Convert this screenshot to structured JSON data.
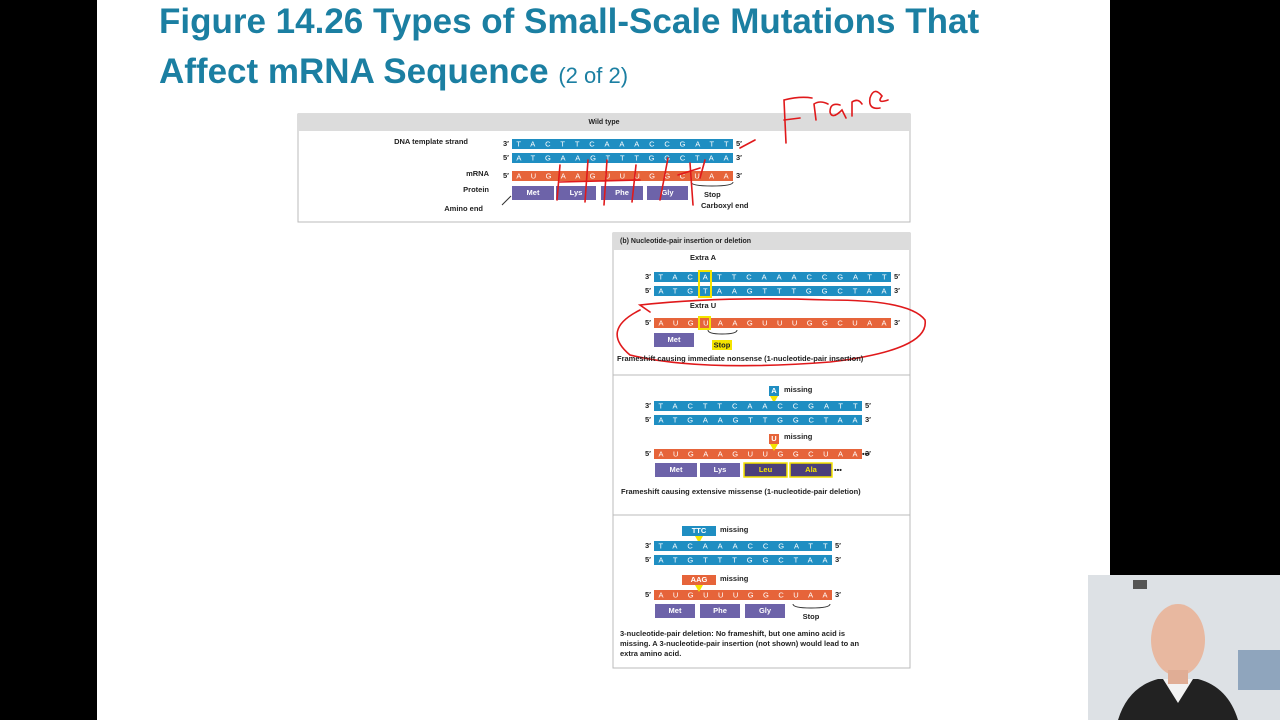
{
  "header": {
    "title_line1": "Figure 14.26 Types of Small-Scale Mutations That",
    "title_line2": "Affect mRNA Sequence",
    "title_suffix": "(2 of 2)"
  },
  "wild_type": {
    "heading": "Wild type",
    "labels": {
      "dna": "DNA template strand",
      "mrna": "mRNA",
      "protein": "Protein",
      "amino_end": "Amino end",
      "carboxyl_end": "Carboxyl end",
      "stop": "Stop"
    },
    "strands": [
      {
        "left": "3′",
        "seq": "TACTTCAAACCGATT",
        "right": "5′"
      },
      {
        "left": "5′",
        "seq": "ATGAAGTTTGGCTAA",
        "right": "3′"
      },
      {
        "left": "5′",
        "seq": "AUGAAGUUUGGCUAA",
        "right": "3′"
      }
    ],
    "protein": [
      "Met",
      "Lys",
      "Phe",
      "Gly"
    ]
  },
  "panel_b": {
    "heading": "(b) Nucleotide-pair insertion or deletion",
    "sections": [
      {
        "top_note": "Extra A",
        "mid_note": "Extra U",
        "strands": [
          {
            "left": "3′",
            "seq": "TACATTCAAACCGATT",
            "right": "5′"
          },
          {
            "left": "5′",
            "seq": "ATGTAAGTTTGGCTAA",
            "right": "3′"
          },
          {
            "left": "5′",
            "seq": "AUGUAAGUUUGGCUAA",
            "right": "3′"
          }
        ],
        "protein": [
          "Met"
        ],
        "stop": "Stop",
        "caption": "Frameshift causing immediate nonsense (1-nucleotide-pair insertion)"
      },
      {
        "top_tag": "A",
        "top_note": "missing",
        "mid_tag": "U",
        "mid_note": "missing",
        "strands": [
          {
            "left": "3′",
            "seq": "TACTTCAACCGATT",
            "right": "5′"
          },
          {
            "left": "5′",
            "seq": "ATGAAGTTGGCTAA",
            "right": "3′"
          },
          {
            "left": "5′",
            "seq": "AUGAAGUUGGCUAA",
            "right": "3′"
          }
        ],
        "strand_trail": "•••",
        "protein": [
          "Met",
          "Lys",
          "Leu",
          "Ala"
        ],
        "protein_trail": "•••",
        "caption": "Frameshift causing extensive missense (1-nucleotide-pair deletion)"
      },
      {
        "top_tag": "TTC",
        "top_note": "missing",
        "mid_tag": "AAG",
        "mid_note": "missing",
        "strands": [
          {
            "left": "3′",
            "seq": "TACAAACCGATT",
            "right": "5′"
          },
          {
            "left": "5′",
            "seq": "ATGTTTGGCTAA",
            "right": "3′"
          },
          {
            "left": "5′",
            "seq": "AUGUUUGGCUAA",
            "right": "3′"
          }
        ],
        "protein": [
          "Met",
          "Phe",
          "Gly"
        ],
        "stop": "Stop",
        "caption": "3-nucleotide-pair deletion: No frameshift, but one amino acid is missing. A 3-nucleotide-pair insertion (not shown) would lead to an extra amino acid."
      }
    ]
  }
}
